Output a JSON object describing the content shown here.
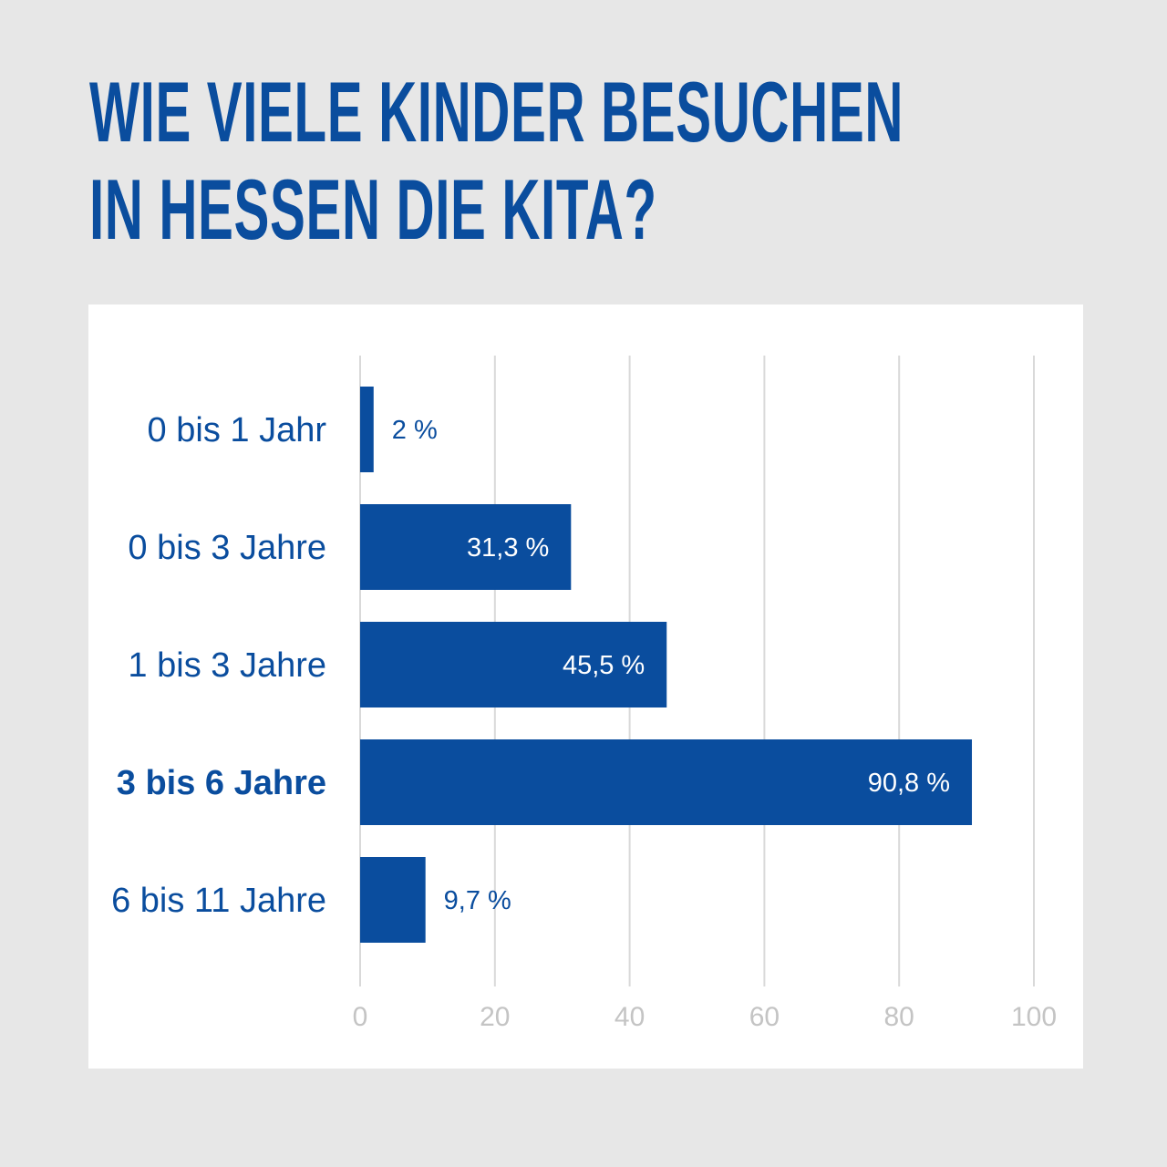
{
  "title_lines": [
    "Wie viele Kinder besuchen",
    "in Hessen die Kita?"
  ],
  "colors": {
    "bar": "#0a4d9e",
    "text": "#0a4d9e",
    "grid": "#d9d9d9",
    "tick": "#c4c4c4",
    "background": "#e7e7e7",
    "panel": "#ffffff"
  },
  "chart_data": {
    "type": "bar",
    "orientation": "horizontal",
    "title": "Wie viele Kinder besuchen in Hessen die Kita?",
    "categories": [
      "0 bis 1 Jahr",
      "0 bis 3 Jahre",
      "1 bis 3 Jahre",
      "3 bis 6 Jahre",
      "6 bis 11 Jahre"
    ],
    "values": [
      2,
      31.3,
      45.5,
      90.8,
      9.7
    ],
    "value_labels": [
      "2 %",
      "31,3 %",
      "45,5 %",
      "90,8 %",
      "9,7 %"
    ],
    "highlighted_category": "3 bis 6 Jahre",
    "xlim": [
      0,
      100
    ],
    "xticks": [
      0,
      20,
      40,
      60,
      80,
      100
    ],
    "xtick_labels": [
      "0",
      "20",
      "40",
      "60",
      "80",
      "100"
    ],
    "xlabel": "",
    "ylabel": "",
    "grid": true,
    "legend": "none"
  }
}
